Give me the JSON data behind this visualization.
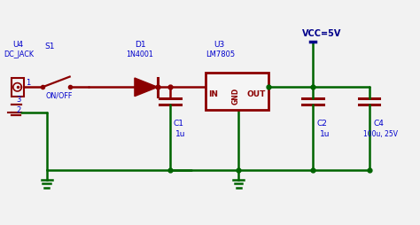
{
  "bg_color": "#f2f2f2",
  "red": "#8b0000",
  "green": "#006400",
  "blue": "#0000cc",
  "dblue": "#00008b",
  "lw": 1.8,
  "lw_thick": 2.2,
  "figw": 4.74,
  "figh": 2.55,
  "dpi": 100,
  "xlim": [
    0,
    10
  ],
  "ylim": [
    0,
    5.4
  ]
}
